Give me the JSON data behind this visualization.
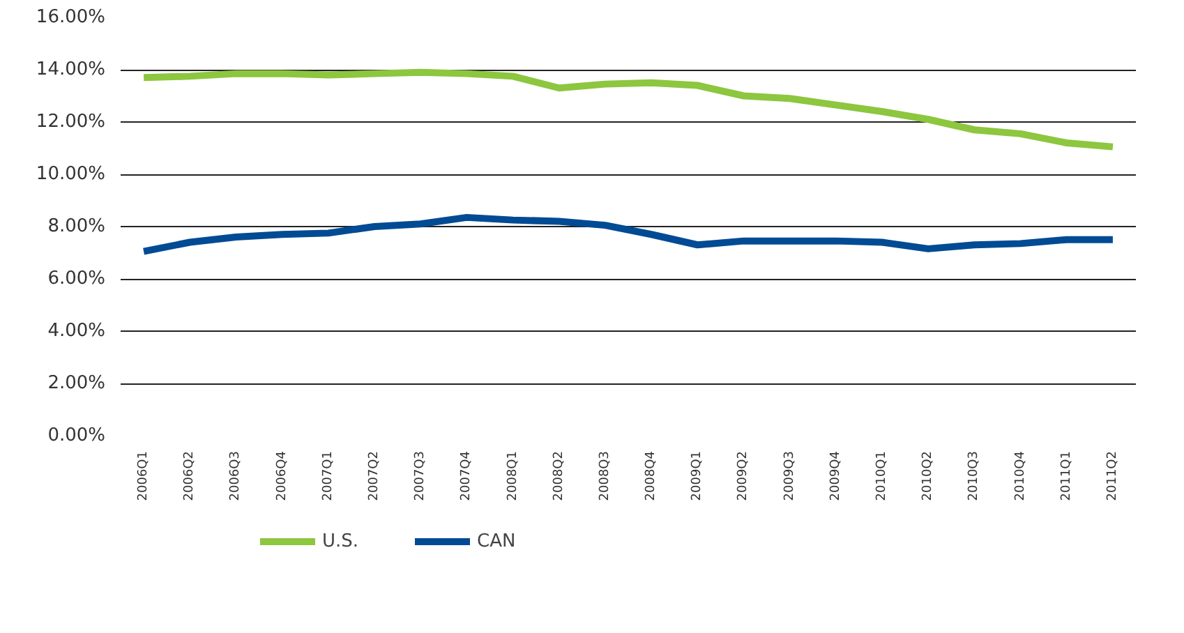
{
  "chart_data": {
    "type": "line",
    "categories": [
      "2006Q1",
      "2006Q2",
      "2006Q3",
      "2006Q4",
      "2007Q1",
      "2007Q2",
      "2007Q3",
      "2007Q4",
      "2008Q1",
      "2008Q2",
      "2008Q3",
      "2008Q4",
      "2009Q1",
      "2009Q2",
      "2009Q3",
      "2009Q4",
      "2010Q1",
      "2010Q2",
      "2010Q3",
      "2010Q4",
      "2011Q1",
      "2011Q2"
    ],
    "series": [
      {
        "name": "U.S.",
        "color": "#8dc63f",
        "values": [
          13.7,
          13.75,
          13.85,
          13.85,
          13.8,
          13.85,
          13.9,
          13.85,
          13.75,
          13.3,
          13.45,
          13.5,
          13.4,
          13.0,
          12.9,
          12.65,
          12.4,
          12.1,
          11.7,
          11.55,
          11.2,
          11.05
        ]
      },
      {
        "name": "CAN",
        "color": "#004b93",
        "values": [
          7.05,
          7.4,
          7.6,
          7.7,
          7.75,
          8.0,
          8.1,
          8.35,
          8.25,
          8.2,
          8.05,
          7.7,
          7.3,
          7.45,
          7.45,
          7.45,
          7.4,
          7.15,
          7.3,
          7.35,
          7.5,
          7.5
        ]
      }
    ],
    "ylim": [
      0,
      16
    ],
    "yticks": [
      {
        "value": 0,
        "label": "0.00%"
      },
      {
        "value": 2,
        "label": "2.00%"
      },
      {
        "value": 4,
        "label": "4.00%"
      },
      {
        "value": 6,
        "label": "6.00%"
      },
      {
        "value": 8,
        "label": "8.00%"
      },
      {
        "value": 10,
        "label": "10.00%"
      },
      {
        "value": 12,
        "label": "12.00%"
      },
      {
        "value": 14,
        "label": "14.00%"
      },
      {
        "value": 16,
        "label": "16.00%"
      }
    ],
    "grid": "y",
    "legend": "bottom left",
    "marker": "none",
    "line_style": "solid"
  }
}
